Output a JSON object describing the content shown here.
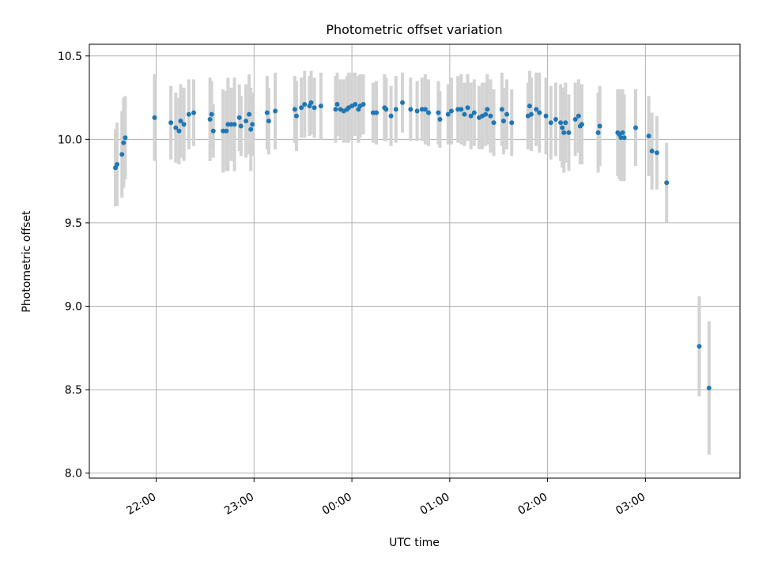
{
  "chart_data": {
    "type": "scatter",
    "title": "Photometric offset variation",
    "xlabel": "UTC time",
    "ylabel": "Photometric offset",
    "ylim": [
      7.97,
      10.57
    ],
    "yticks": [
      8.0,
      8.5,
      9.0,
      9.5,
      10.0,
      10.5
    ],
    "ytick_labels": [
      "8.0",
      "8.5",
      "9.0",
      "9.5",
      "10.0",
      "10.5"
    ],
    "xlim": [
      "21:19",
      "03:58"
    ],
    "xticks": [
      "22:00",
      "23:00",
      "00:00",
      "01:00",
      "02:00",
      "03:00"
    ],
    "xtick_labels": [
      "22:00",
      "23:00",
      "00:00",
      "01:00",
      "02:00",
      "03:00"
    ],
    "grid": true,
    "colors": {
      "points": "#1f77b4",
      "errorbars": "#d3d3d3",
      "grid": "#b0b0b0"
    },
    "series": [
      {
        "points": [
          {
            "x": "21:35",
            "y": 9.83,
            "err": 0.23
          },
          {
            "x": "21:36",
            "y": 9.85,
            "err": 0.25
          },
          {
            "x": "21:39",
            "y": 9.91,
            "err": 0.26
          },
          {
            "x": "21:40",
            "y": 9.98,
            "err": 0.27
          },
          {
            "x": "21:41",
            "y": 10.01,
            "err": 0.25
          },
          {
            "x": "21:59",
            "y": 10.13,
            "err": 0.26
          },
          {
            "x": "22:09",
            "y": 10.1,
            "err": 0.22
          },
          {
            "x": "22:12",
            "y": 10.07,
            "err": 0.21
          },
          {
            "x": "22:14",
            "y": 10.05,
            "err": 0.2
          },
          {
            "x": "22:15",
            "y": 10.11,
            "err": 0.22
          },
          {
            "x": "22:17",
            "y": 10.09,
            "err": 0.22
          },
          {
            "x": "22:20",
            "y": 10.15,
            "err": 0.21
          },
          {
            "x": "22:23",
            "y": 10.16,
            "err": 0.2
          },
          {
            "x": "22:33",
            "y": 10.12,
            "err": 0.25
          },
          {
            "x": "22:34",
            "y": 10.15,
            "err": 0.2
          },
          {
            "x": "22:35",
            "y": 10.05,
            "err": 0.16
          },
          {
            "x": "22:41",
            "y": 10.05,
            "err": 0.25
          },
          {
            "x": "22:43",
            "y": 10.05,
            "err": 0.24
          },
          {
            "x": "22:44",
            "y": 10.09,
            "err": 0.28
          },
          {
            "x": "22:46",
            "y": 10.09,
            "err": 0.22
          },
          {
            "x": "22:48",
            "y": 10.09,
            "err": 0.28
          },
          {
            "x": "22:51",
            "y": 10.13,
            "err": 0.2
          },
          {
            "x": "22:52",
            "y": 10.08,
            "err": 0.18
          },
          {
            "x": "22:55",
            "y": 10.11,
            "err": 0.22
          },
          {
            "x": "22:57",
            "y": 10.15,
            "err": 0.24
          },
          {
            "x": "22:58",
            "y": 10.06,
            "err": 0.25
          },
          {
            "x": "22:59",
            "y": 10.09,
            "err": 0.19
          },
          {
            "x": "23:08",
            "y": 10.16,
            "err": 0.22
          },
          {
            "x": "23:09",
            "y": 10.11,
            "err": 0.2
          },
          {
            "x": "23:13",
            "y": 10.17,
            "err": 0.23
          },
          {
            "x": "23:25",
            "y": 10.18,
            "err": 0.2
          },
          {
            "x": "23:26",
            "y": 10.14,
            "err": 0.21
          },
          {
            "x": "23:29",
            "y": 10.19,
            "err": 0.18
          },
          {
            "x": "23:31",
            "y": 10.21,
            "err": 0.2
          },
          {
            "x": "23:34",
            "y": 10.2,
            "err": 0.18
          },
          {
            "x": "23:35",
            "y": 10.22,
            "err": 0.19
          },
          {
            "x": "23:37",
            "y": 10.19,
            "err": 0.18
          },
          {
            "x": "23:41",
            "y": 10.2,
            "err": 0.2
          },
          {
            "x": "23:50",
            "y": 10.18,
            "err": 0.2
          },
          {
            "x": "23:51",
            "y": 10.21,
            "err": 0.19
          },
          {
            "x": "23:53",
            "y": 10.18,
            "err": 0.18
          },
          {
            "x": "23:55",
            "y": 10.17,
            "err": 0.19
          },
          {
            "x": "23:57",
            "y": 10.18,
            "err": 0.2
          },
          {
            "x": "23:58",
            "y": 10.19,
            "err": 0.21
          },
          {
            "x": "00:00",
            "y": 10.2,
            "err": 0.2
          },
          {
            "x": "00:02",
            "y": 10.21,
            "err": 0.19
          },
          {
            "x": "00:04",
            "y": 10.18,
            "err": 0.2
          },
          {
            "x": "00:05",
            "y": 10.2,
            "err": 0.19
          },
          {
            "x": "00:07",
            "y": 10.21,
            "err": 0.18
          },
          {
            "x": "00:13",
            "y": 10.16,
            "err": 0.18
          },
          {
            "x": "00:15",
            "y": 10.16,
            "err": 0.19
          },
          {
            "x": "00:20",
            "y": 10.19,
            "err": 0.2
          },
          {
            "x": "00:21",
            "y": 10.18,
            "err": 0.19
          },
          {
            "x": "00:24",
            "y": 10.14,
            "err": 0.18
          },
          {
            "x": "00:27",
            "y": 10.18,
            "err": 0.2
          },
          {
            "x": "00:31",
            "y": 10.22,
            "err": 0.18
          },
          {
            "x": "00:36",
            "y": 10.18,
            "err": 0.19
          },
          {
            "x": "00:40",
            "y": 10.17,
            "err": 0.18
          },
          {
            "x": "00:43",
            "y": 10.18,
            "err": 0.19
          },
          {
            "x": "00:45",
            "y": 10.18,
            "err": 0.21
          },
          {
            "x": "00:47",
            "y": 10.16,
            "err": 0.2
          },
          {
            "x": "00:53",
            "y": 10.16,
            "err": 0.19
          },
          {
            "x": "00:54",
            "y": 10.12,
            "err": 0.17
          },
          {
            "x": "00:59",
            "y": 10.15,
            "err": 0.18
          },
          {
            "x": "01:01",
            "y": 10.17,
            "err": 0.2
          },
          {
            "x": "01:05",
            "y": 10.18,
            "err": 0.2
          },
          {
            "x": "01:07",
            "y": 10.18,
            "err": 0.21
          },
          {
            "x": "01:09",
            "y": 10.15,
            "err": 0.19
          },
          {
            "x": "01:11",
            "y": 10.19,
            "err": 0.2
          },
          {
            "x": "01:13",
            "y": 10.14,
            "err": 0.2
          },
          {
            "x": "01:15",
            "y": 10.16,
            "err": 0.2
          },
          {
            "x": "01:18",
            "y": 10.13,
            "err": 0.19
          },
          {
            "x": "01:20",
            "y": 10.14,
            "err": 0.2
          },
          {
            "x": "01:22",
            "y": 10.15,
            "err": 0.19
          },
          {
            "x": "01:23",
            "y": 10.18,
            "err": 0.21
          },
          {
            "x": "01:25",
            "y": 10.14,
            "err": 0.22
          },
          {
            "x": "01:27",
            "y": 10.1,
            "err": 0.2
          },
          {
            "x": "01:32",
            "y": 10.18,
            "err": 0.22
          },
          {
            "x": "01:33",
            "y": 10.11,
            "err": 0.2
          },
          {
            "x": "01:35",
            "y": 10.15,
            "err": 0.21
          },
          {
            "x": "01:38",
            "y": 10.1,
            "err": 0.2
          },
          {
            "x": "01:48",
            "y": 10.14,
            "err": 0.2
          },
          {
            "x": "01:49",
            "y": 10.2,
            "err": 0.21
          },
          {
            "x": "01:50",
            "y": 10.15,
            "err": 0.22
          },
          {
            "x": "01:53",
            "y": 10.18,
            "err": 0.22
          },
          {
            "x": "01:55",
            "y": 10.16,
            "err": 0.24
          },
          {
            "x": "01:59",
            "y": 10.14,
            "err": 0.23
          },
          {
            "x": "02:02",
            "y": 10.1,
            "err": 0.22
          },
          {
            "x": "02:05",
            "y": 10.12,
            "err": 0.22
          },
          {
            "x": "02:08",
            "y": 10.1,
            "err": 0.23
          },
          {
            "x": "02:09",
            "y": 10.07,
            "err": 0.24
          },
          {
            "x": "02:10",
            "y": 10.04,
            "err": 0.24
          },
          {
            "x": "02:11",
            "y": 10.1,
            "err": 0.24
          },
          {
            "x": "02:13",
            "y": 10.04,
            "err": 0.23
          },
          {
            "x": "02:17",
            "y": 10.12,
            "err": 0.22
          },
          {
            "x": "02:19",
            "y": 10.14,
            "err": 0.22
          },
          {
            "x": "02:20",
            "y": 10.08,
            "err": 0.23
          },
          {
            "x": "02:21",
            "y": 10.09,
            "err": 0.24
          },
          {
            "x": "02:31",
            "y": 10.04,
            "err": 0.24
          },
          {
            "x": "02:32",
            "y": 10.08,
            "err": 0.24
          },
          {
            "x": "02:43",
            "y": 10.04,
            "err": 0.26
          },
          {
            "x": "02:44",
            "y": 10.03,
            "err": 0.27
          },
          {
            "x": "02:45",
            "y": 10.01,
            "err": 0.26
          },
          {
            "x": "02:46",
            "y": 10.04,
            "err": 0.26
          },
          {
            "x": "02:47",
            "y": 10.01,
            "err": 0.26
          },
          {
            "x": "02:54",
            "y": 10.07,
            "err": 0.23
          },
          {
            "x": "03:02",
            "y": 10.02,
            "err": 0.24
          },
          {
            "x": "03:04",
            "y": 9.93,
            "err": 0.23
          },
          {
            "x": "03:07",
            "y": 9.92,
            "err": 0.22
          },
          {
            "x": "03:13",
            "y": 9.74,
            "err": 0.24
          },
          {
            "x": "03:33",
            "y": 8.76,
            "err": 0.3
          },
          {
            "x": "03:39",
            "y": 8.51,
            "err": 0.4
          }
        ]
      }
    ]
  }
}
